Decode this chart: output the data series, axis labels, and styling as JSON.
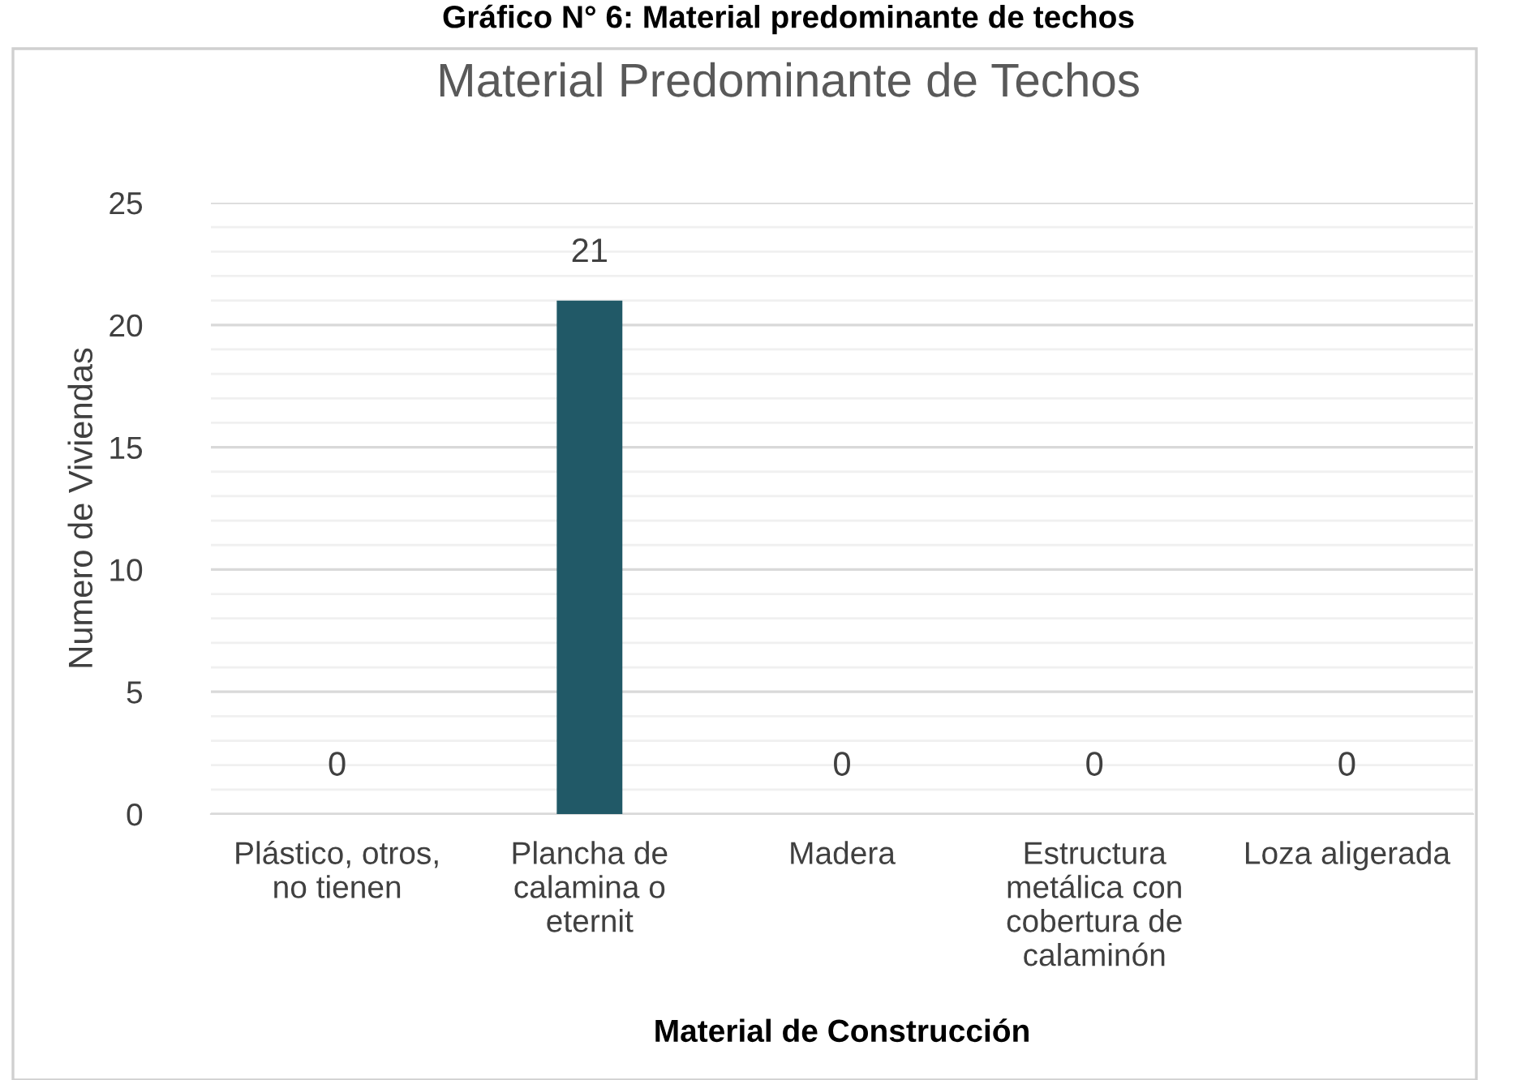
{
  "chart_data": {
    "type": "bar",
    "title": "Material Predominante de Techos",
    "subtitle": "Gráfico N° 6: Material predominante de techos",
    "xlabel": "Material de Construcción",
    "ylabel": "Numero de Viviendas",
    "categories": [
      "Plástico, otros, no tienen",
      "Plancha de calamina o eternit",
      "Madera",
      "Estructura metálica con cobertura de calaminón",
      "Loza aligerada"
    ],
    "values": [
      0,
      21,
      0,
      0,
      0
    ],
    "color": "#215967",
    "ylim": [
      0,
      25
    ],
    "yticks": [
      0,
      5,
      10,
      15,
      20,
      25
    ],
    "grid": "y",
    "data_labels": true
  }
}
